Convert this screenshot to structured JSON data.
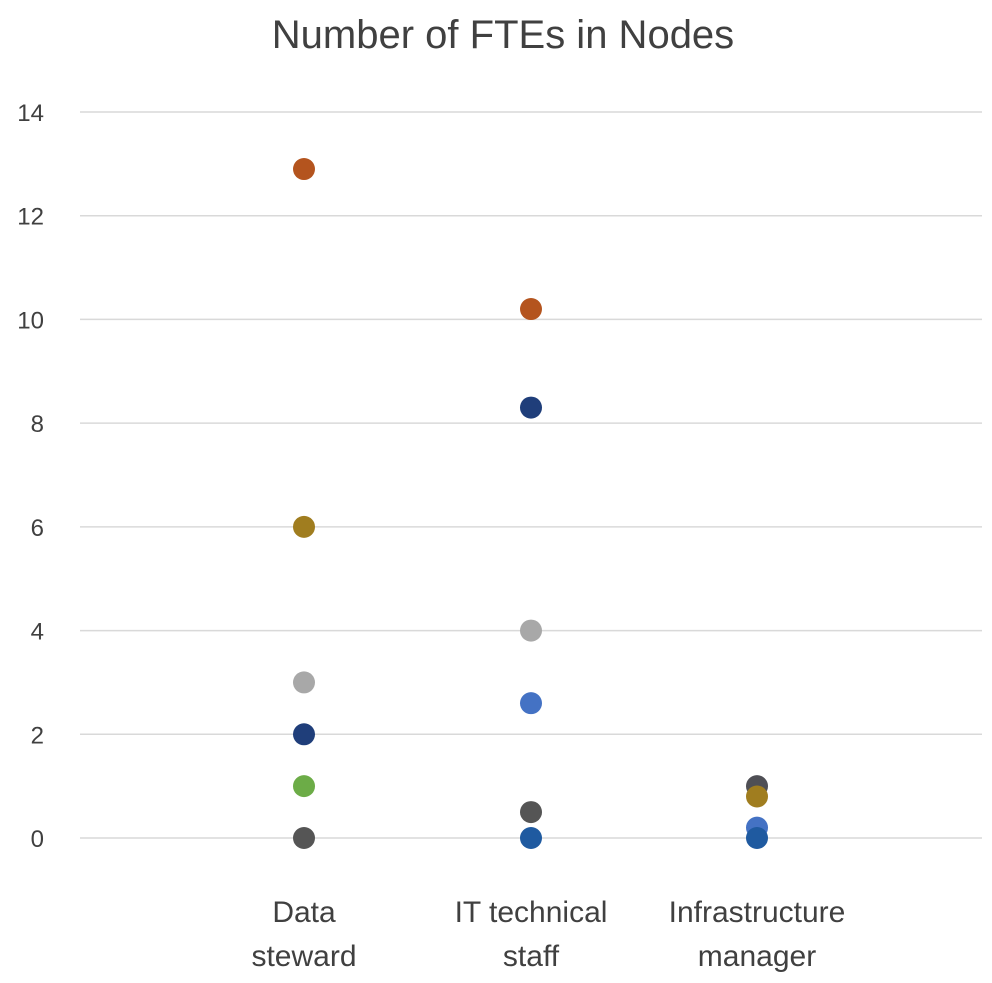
{
  "chart_data": {
    "type": "scatter",
    "title": "Number of FTEs in Nodes",
    "xlabel": "",
    "ylabel": "",
    "ylim": [
      0,
      14
    ],
    "yticks": [
      "0",
      "2",
      "4",
      "6",
      "8",
      "10",
      "12",
      "14"
    ],
    "grid": true,
    "categories": [
      [
        "Data",
        "steward"
      ],
      [
        "IT technical",
        "staff"
      ],
      [
        "Infrastructure",
        "manager"
      ]
    ],
    "points": [
      {
        "category": 0,
        "y": 12.9,
        "color": "#b4541e"
      },
      {
        "category": 0,
        "y": 6.0,
        "color": "#a07d1f"
      },
      {
        "category": 0,
        "y": 3.0,
        "color": "#a8a8a8"
      },
      {
        "category": 0,
        "y": 2.0,
        "color": "#1f3e7a"
      },
      {
        "category": 0,
        "y": 1.0,
        "color": "#6cac47"
      },
      {
        "category": 0,
        "y": 0.0,
        "color": "#555555"
      },
      {
        "category": 1,
        "y": 10.2,
        "color": "#b4541e"
      },
      {
        "category": 1,
        "y": 8.3,
        "color": "#1f3e7a"
      },
      {
        "category": 1,
        "y": 4.0,
        "color": "#a8a8a8"
      },
      {
        "category": 1,
        "y": 2.6,
        "color": "#4472c4"
      },
      {
        "category": 1,
        "y": 0.5,
        "color": "#555555"
      },
      {
        "category": 1,
        "y": 0.0,
        "color": "#1f5aa0"
      },
      {
        "category": 2,
        "y": 1.0,
        "color": "#4f4f55"
      },
      {
        "category": 2,
        "y": 0.8,
        "color": "#a07d1f"
      },
      {
        "category": 2,
        "y": 0.2,
        "color": "#4472c4"
      },
      {
        "category": 2,
        "y": 0.0,
        "color": "#1f5aa0"
      }
    ]
  }
}
